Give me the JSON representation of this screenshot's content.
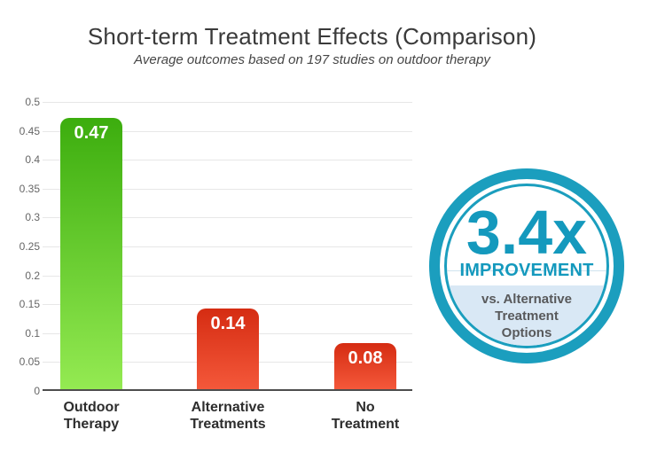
{
  "chart_data": {
    "type": "bar",
    "title": "Short-term Treatment Effects (Comparison)",
    "subtitle": "Average outcomes based on 197 studies on outdoor therapy",
    "categories": [
      "Outdoor Therapy",
      "Alternative Treatments",
      "No Treatment"
    ],
    "category_lines": [
      [
        "Outdoor",
        "Therapy"
      ],
      [
        "Alternative",
        "Treatments"
      ],
      [
        "No",
        "Treatment"
      ]
    ],
    "values": [
      0.47,
      0.14,
      0.08
    ],
    "value_labels": [
      "0.47",
      "0.14",
      "0.08"
    ],
    "bar_colors": [
      {
        "top": "#3cad0e",
        "bottom": "#94ea52"
      },
      {
        "top": "#d52c12",
        "bottom": "#f4583a"
      },
      {
        "top": "#d52c12",
        "bottom": "#f4583a"
      }
    ],
    "xlabel": "",
    "ylabel": "",
    "ylim": [
      0,
      0.5
    ],
    "ytick_step": 0.05,
    "yticks": [
      "0.5",
      "0.45",
      "0.4",
      "0.35",
      "0.3",
      "0.25",
      "0.2",
      "0.15",
      "0.1",
      "0.05",
      "0"
    ],
    "grid": true,
    "legend": false
  },
  "badge": {
    "multiplier": "3.4x",
    "label": "IMPROVEMENT",
    "sublabel": "vs. Alternative Treatment Options",
    "sublabel_lines": [
      "vs. Alternative",
      "Treatment",
      "Options"
    ],
    "ring_color": "#1b9ebe",
    "text_color": "#1499bd",
    "panel_color": "#d9e8f5",
    "sublabel_color": "#58595b"
  }
}
